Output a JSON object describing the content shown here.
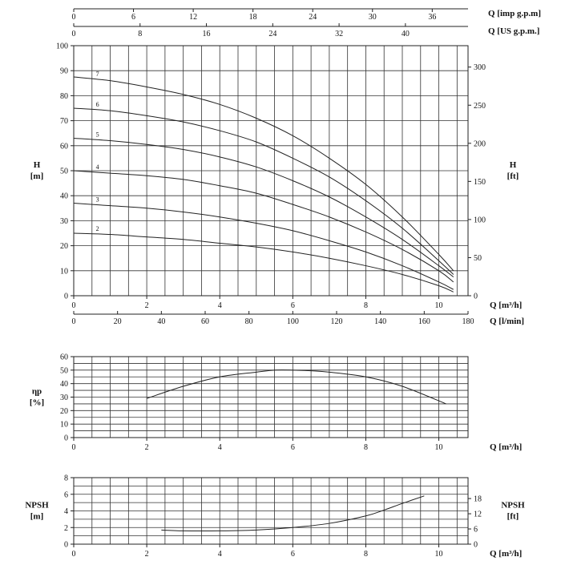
{
  "chart_data": [
    {
      "type": "line",
      "panel": "head",
      "xlabel": "Q [m³/h]",
      "xlim": [
        0,
        10.8
      ],
      "xticks": [
        0,
        2,
        4,
        6,
        8,
        10
      ],
      "secondary_x_bottom": {
        "label": "Q [l/min]",
        "ticks": [
          0,
          20,
          40,
          60,
          80,
          100,
          120,
          140,
          160,
          180
        ],
        "per_m3h": 16.6667
      },
      "secondary_x_top": [
        {
          "label": "Q [imp g.p.m]",
          "ticks": [
            0,
            6,
            12,
            18,
            24,
            30,
            36
          ],
          "per_m3h": 3.6662
        },
        {
          "label": "Q [US g.p.m.]",
          "ticks": [
            0,
            8,
            16,
            24,
            32,
            40
          ],
          "per_m3h": 4.4029
        }
      ],
      "ylabel": "H",
      "ylabel_unit": "[m]",
      "ylim": [
        0,
        100
      ],
      "yticks": [
        0,
        10,
        20,
        30,
        40,
        50,
        60,
        70,
        80,
        90,
        100
      ],
      "secondary_y": {
        "label": "H",
        "unit": "[ft]",
        "ticks": [
          0,
          50,
          100,
          150,
          200,
          250,
          300
        ],
        "per_m": 3.28084
      },
      "series": [
        {
          "name": "7",
          "x": [
            0,
            1,
            2,
            3,
            4,
            5,
            6,
            7,
            8,
            9,
            10,
            10.4
          ],
          "y": [
            87.5,
            86,
            83.5,
            80.5,
            76.5,
            71,
            64,
            55,
            44.5,
            31.5,
            16.5,
            10
          ]
        },
        {
          "name": "6",
          "x": [
            0,
            1,
            2,
            3,
            4,
            5,
            6,
            7,
            8,
            9,
            10,
            10.4
          ],
          "y": [
            75,
            74,
            72,
            69.5,
            66,
            61.5,
            55,
            47.5,
            38,
            27,
            14,
            8.5
          ]
        },
        {
          "name": "5",
          "x": [
            0,
            1,
            2,
            3,
            4,
            5,
            6,
            7,
            8,
            9,
            10,
            10.4
          ],
          "y": [
            63,
            62,
            60.5,
            58.5,
            55.5,
            51.5,
            46,
            39.5,
            31.5,
            22.5,
            12,
            7.5
          ]
        },
        {
          "name": "4",
          "x": [
            0,
            1,
            2,
            3,
            4,
            5,
            6,
            7,
            8,
            9,
            10,
            10.4
          ],
          "y": [
            50,
            49,
            48,
            46.5,
            44,
            41,
            36.5,
            31.5,
            25.5,
            18.5,
            10,
            5.5
          ]
        },
        {
          "name": "3",
          "x": [
            0,
            1,
            2,
            3,
            4,
            5,
            6,
            7,
            8,
            9,
            10,
            10.4
          ],
          "y": [
            37,
            36,
            35,
            33.5,
            31.5,
            29,
            26,
            22,
            17.5,
            12,
            5.5,
            2.5
          ]
        },
        {
          "name": "2",
          "x": [
            0,
            1,
            2,
            3,
            4,
            5,
            6,
            7,
            8,
            9,
            10,
            10.4
          ],
          "y": [
            25,
            24.5,
            23.5,
            22.5,
            21,
            19.5,
            17.5,
            15,
            12,
            8.5,
            4,
            1.5
          ]
        }
      ],
      "grid": true
    },
    {
      "type": "line",
      "panel": "efficiency",
      "xlabel": "Q [m³/h]",
      "xlim": [
        0,
        10.8
      ],
      "xticks": [
        0,
        2,
        4,
        6,
        8,
        10
      ],
      "ylabel": "ηp",
      "ylabel_unit": "[%]",
      "ylim": [
        0,
        60
      ],
      "yticks": [
        0,
        10,
        20,
        30,
        40,
        50,
        60
      ],
      "series": [
        {
          "x": [
            2,
            3,
            4,
            5,
            5.5,
            6,
            6.5,
            7,
            8,
            9,
            10.2
          ],
          "y": [
            29,
            38,
            45,
            48.5,
            50,
            50,
            49.5,
            48.5,
            45,
            38,
            25
          ]
        }
      ],
      "grid": true
    },
    {
      "type": "line",
      "panel": "npsh",
      "xlabel": "Q [m³/h]",
      "xlim": [
        0,
        10.8
      ],
      "xticks": [
        0,
        2,
        4,
        6,
        8,
        10
      ],
      "ylabel": "NPSH",
      "ylabel_unit": "[m]",
      "ylim": [
        0,
        8
      ],
      "yticks": [
        0,
        2,
        4,
        6,
        8
      ],
      "secondary_y": {
        "label": "NPSH",
        "unit": "[ft]",
        "ticks": [
          0,
          6,
          12,
          18
        ],
        "per_m": 3.28084
      },
      "series": [
        {
          "x": [
            2.4,
            3,
            4,
            5,
            6,
            7,
            8,
            8.5,
            9,
            9.6
          ],
          "y": [
            1.7,
            1.6,
            1.6,
            1.7,
            2,
            2.5,
            3.4,
            4.1,
            4.9,
            5.8
          ]
        }
      ],
      "grid": true
    }
  ]
}
